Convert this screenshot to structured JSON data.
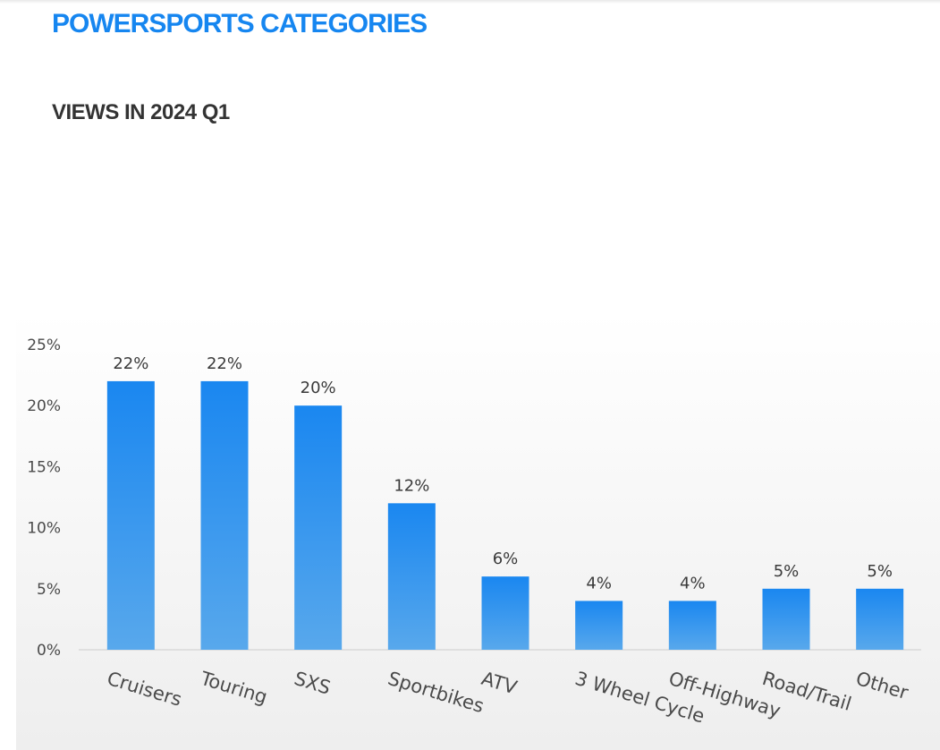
{
  "header": {
    "title": "POWERSPORTS CATEGORIES",
    "subtitle": "VIEWS IN 2024 Q1"
  },
  "colors": {
    "title": "#1686f0",
    "bar_top": "#1a87f0",
    "bar_bottom": "#58a8ec"
  },
  "chart_data": {
    "type": "bar",
    "categories": [
      "Cruisers",
      "Touring",
      "SXS",
      "Sportbikes",
      "ATV",
      "3 Wheel Cycle",
      "Off-Highway",
      "Road/Trail",
      "Other"
    ],
    "values": [
      22,
      22,
      20,
      12,
      6,
      4,
      4,
      5,
      5
    ],
    "data_labels": [
      "22%",
      "22%",
      "20%",
      "12%",
      "6%",
      "4%",
      "4%",
      "5%",
      "5%"
    ],
    "y_ticks": [
      "0%",
      "5%",
      "10%",
      "15%",
      "20%",
      "25%"
    ],
    "ylim": [
      0,
      25
    ],
    "grid": false,
    "legend": "none"
  }
}
